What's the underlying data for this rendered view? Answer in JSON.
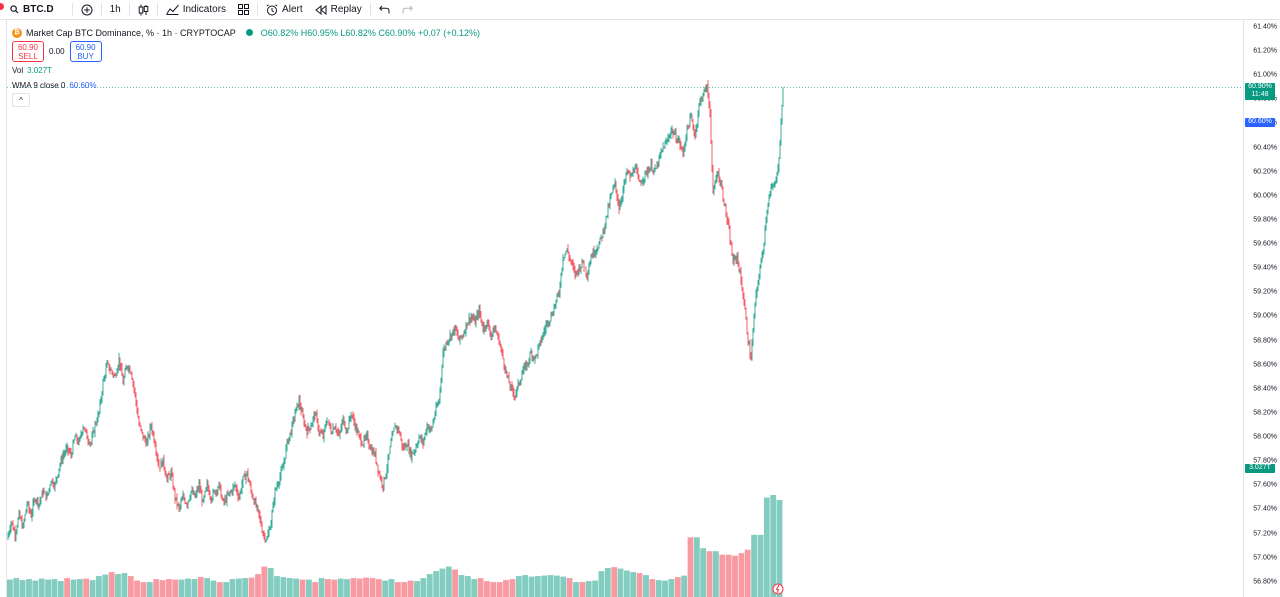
{
  "toolbar": {
    "symbol": "BTC.D",
    "interval": "1h",
    "indicators_label": "Indicators",
    "alert_label": "Alert",
    "replay_label": "Replay"
  },
  "legend": {
    "title": "Market Cap BTC Dominance, % · 1h · CRYPTOCAP",
    "o_label": "O",
    "o": "60.82%",
    "h_label": "H",
    "h": "60.95%",
    "l_label": "L",
    "l": "60.82%",
    "c_label": "C",
    "c": "60.90%",
    "change": "+0.07 (+0.12%)",
    "sell_price": "60.90",
    "sell_label": "SELL",
    "spread": "0.00",
    "buy_price": "60.90",
    "buy_label": "BUY",
    "vol_label": "Vol",
    "vol_value": "3.027T",
    "wma_label": "WMA 9 close 0",
    "wma_value": "60.60%"
  },
  "price_axis": {
    "ticks": [
      "61.40%",
      "61.20%",
      "61.00%",
      "60.80%",
      "60.60%",
      "60.40%",
      "60.20%",
      "60.00%",
      "59.80%",
      "59.60%",
      "59.40%",
      "59.20%",
      "59.00%",
      "58.80%",
      "58.60%",
      "58.40%",
      "58.20%",
      "58.00%",
      "57.80%",
      "57.60%",
      "57.40%",
      "57.20%",
      "57.00%",
      "56.80%"
    ],
    "last_price": "60.90%",
    "countdown": "11:48",
    "wma_tag": "60.60%",
    "vol_tag": "3.027T"
  },
  "colors": {
    "up": "#089981",
    "down": "#f23645",
    "wma": "#2962ff",
    "price_line": "#089981"
  },
  "chart_data": {
    "type": "candlestick",
    "y_range": [
      56.7,
      61.5
    ],
    "price_path": [
      [
        0,
        57.15
      ],
      [
        4,
        57.3
      ],
      [
        8,
        57.2
      ],
      [
        12,
        57.35
      ],
      [
        16,
        57.25
      ],
      [
        20,
        57.45
      ],
      [
        24,
        57.35
      ],
      [
        28,
        57.5
      ],
      [
        32,
        57.45
      ],
      [
        36,
        57.55
      ],
      [
        40,
        57.5
      ],
      [
        44,
        57.65
      ],
      [
        48,
        57.6
      ],
      [
        52,
        57.75
      ],
      [
        56,
        57.85
      ],
      [
        60,
        57.9
      ],
      [
        64,
        57.85
      ],
      [
        68,
        58.0
      ],
      [
        72,
        57.95
      ],
      [
        76,
        58.1
      ],
      [
        80,
        58.0
      ],
      [
        84,
        57.95
      ],
      [
        88,
        58.1
      ],
      [
        92,
        58.2
      ],
      [
        96,
        58.45
      ],
      [
        100,
        58.6
      ],
      [
        104,
        58.55
      ],
      [
        108,
        58.5
      ],
      [
        112,
        58.65
      ],
      [
        116,
        58.45
      ],
      [
        120,
        58.6
      ],
      [
        124,
        58.55
      ],
      [
        128,
        58.35
      ],
      [
        132,
        58.1
      ],
      [
        136,
        58.0
      ],
      [
        140,
        57.95
      ],
      [
        144,
        58.1
      ],
      [
        148,
        57.95
      ],
      [
        152,
        57.75
      ],
      [
        156,
        57.8
      ],
      [
        160,
        57.65
      ],
      [
        164,
        57.7
      ],
      [
        168,
        57.5
      ],
      [
        172,
        57.4
      ],
      [
        176,
        57.5
      ],
      [
        180,
        57.45
      ],
      [
        184,
        57.55
      ],
      [
        188,
        57.5
      ],
      [
        192,
        57.6
      ],
      [
        196,
        57.45
      ],
      [
        200,
        57.6
      ],
      [
        204,
        57.5
      ],
      [
        208,
        57.55
      ],
      [
        212,
        57.6
      ],
      [
        216,
        57.45
      ],
      [
        220,
        57.5
      ],
      [
        224,
        57.55
      ],
      [
        228,
        57.6
      ],
      [
        232,
        57.5
      ],
      [
        236,
        57.65
      ],
      [
        240,
        57.7
      ],
      [
        244,
        57.55
      ],
      [
        248,
        57.45
      ],
      [
        252,
        57.35
      ],
      [
        256,
        57.2
      ],
      [
        260,
        57.15
      ],
      [
        264,
        57.3
      ],
      [
        268,
        57.55
      ],
      [
        272,
        57.65
      ],
      [
        276,
        57.75
      ],
      [
        280,
        57.95
      ],
      [
        284,
        58.05
      ],
      [
        288,
        58.2
      ],
      [
        292,
        58.3
      ],
      [
        296,
        58.15
      ],
      [
        300,
        58.05
      ],
      [
        304,
        58.1
      ],
      [
        308,
        58.2
      ],
      [
        312,
        58.05
      ],
      [
        316,
        58.0
      ],
      [
        320,
        58.15
      ],
      [
        324,
        58.05
      ],
      [
        328,
        58.1
      ],
      [
        332,
        58.0
      ],
      [
        336,
        58.15
      ],
      [
        340,
        58.05
      ],
      [
        344,
        58.2
      ],
      [
        348,
        58.1
      ],
      [
        352,
        58.0
      ],
      [
        356,
        57.95
      ],
      [
        360,
        58.0
      ],
      [
        364,
        57.9
      ],
      [
        368,
        57.85
      ],
      [
        372,
        57.7
      ],
      [
        376,
        57.6
      ],
      [
        380,
        57.75
      ],
      [
        384,
        57.95
      ],
      [
        388,
        58.1
      ],
      [
        392,
        58.05
      ],
      [
        396,
        57.9
      ],
      [
        400,
        57.95
      ],
      [
        404,
        57.85
      ],
      [
        408,
        57.9
      ],
      [
        412,
        58.0
      ],
      [
        416,
        57.95
      ],
      [
        420,
        58.1
      ],
      [
        424,
        58.05
      ],
      [
        428,
        58.2
      ],
      [
        432,
        58.3
      ],
      [
        436,
        58.7
      ],
      [
        440,
        58.8
      ],
      [
        444,
        58.85
      ],
      [
        448,
        58.9
      ],
      [
        452,
        58.8
      ],
      [
        456,
        58.85
      ],
      [
        460,
        58.95
      ],
      [
        464,
        59.0
      ],
      [
        468,
        58.95
      ],
      [
        472,
        59.05
      ],
      [
        476,
        58.9
      ],
      [
        480,
        58.95
      ],
      [
        484,
        58.85
      ],
      [
        488,
        58.9
      ],
      [
        492,
        58.8
      ],
      [
        496,
        58.65
      ],
      [
        500,
        58.5
      ],
      [
        504,
        58.4
      ],
      [
        508,
        58.35
      ],
      [
        512,
        58.45
      ],
      [
        516,
        58.55
      ],
      [
        520,
        58.6
      ],
      [
        524,
        58.7
      ],
      [
        528,
        58.65
      ],
      [
        532,
        58.75
      ],
      [
        536,
        58.85
      ],
      [
        540,
        58.95
      ],
      [
        544,
        59.0
      ],
      [
        548,
        59.1
      ],
      [
        552,
        59.2
      ],
      [
        556,
        59.5
      ],
      [
        560,
        59.55
      ],
      [
        564,
        59.45
      ],
      [
        568,
        59.35
      ],
      [
        572,
        59.4
      ],
      [
        576,
        59.45
      ],
      [
        580,
        59.35
      ],
      [
        584,
        59.5
      ],
      [
        588,
        59.55
      ],
      [
        592,
        59.6
      ],
      [
        596,
        59.7
      ],
      [
        600,
        59.85
      ],
      [
        604,
        60.0
      ],
      [
        608,
        60.1
      ],
      [
        612,
        59.9
      ],
      [
        616,
        60.05
      ],
      [
        620,
        60.2
      ],
      [
        624,
        60.15
      ],
      [
        628,
        60.25
      ],
      [
        632,
        60.1
      ],
      [
        636,
        60.15
      ],
      [
        640,
        60.2
      ],
      [
        644,
        60.25
      ],
      [
        648,
        60.2
      ],
      [
        652,
        60.3
      ],
      [
        656,
        60.4
      ],
      [
        660,
        60.45
      ],
      [
        664,
        60.55
      ],
      [
        668,
        60.5
      ],
      [
        672,
        60.45
      ],
      [
        676,
        60.35
      ],
      [
        680,
        60.55
      ],
      [
        684,
        60.65
      ],
      [
        688,
        60.5
      ],
      [
        692,
        60.75
      ],
      [
        696,
        60.85
      ],
      [
        700,
        60.9
      ],
      [
        703,
        60.7
      ],
      [
        706,
        60.0
      ],
      [
        710,
        60.2
      ],
      [
        714,
        60.1
      ],
      [
        718,
        59.9
      ],
      [
        722,
        59.7
      ],
      [
        726,
        59.45
      ],
      [
        730,
        59.5
      ],
      [
        734,
        59.3
      ],
      [
        738,
        59.05
      ],
      [
        741,
        58.8
      ],
      [
        744,
        58.65
      ],
      [
        748,
        59.1
      ],
      [
        752,
        59.35
      ],
      [
        756,
        59.55
      ],
      [
        760,
        59.9
      ],
      [
        764,
        60.05
      ],
      [
        768,
        60.1
      ],
      [
        772,
        60.3
      ],
      [
        776,
        60.9
      ]
    ],
    "volume_levels": [
      0.35,
      0.38,
      0.34,
      0.36,
      0.33,
      0.37,
      0.35,
      0.36,
      0.32,
      0.38,
      0.35,
      0.36,
      0.37,
      0.34,
      0.42,
      0.45,
      0.5,
      0.46,
      0.48,
      0.42,
      0.33,
      0.3,
      0.3,
      0.36,
      0.34,
      0.36,
      0.35,
      0.35,
      0.37,
      0.36,
      0.4,
      0.38,
      0.33,
      0.3,
      0.3,
      0.36,
      0.37,
      0.38,
      0.39,
      0.46,
      0.61,
      0.58,
      0.42,
      0.4,
      0.38,
      0.37,
      0.35,
      0.35,
      0.3,
      0.38,
      0.36,
      0.35,
      0.37,
      0.36,
      0.38,
      0.37,
      0.39,
      0.38,
      0.36,
      0.33,
      0.36,
      0.3,
      0.3,
      0.33,
      0.32,
      0.38,
      0.46,
      0.52,
      0.57,
      0.61,
      0.55,
      0.44,
      0.42,
      0.36,
      0.38,
      0.32,
      0.3,
      0.3,
      0.34,
      0.36,
      0.42,
      0.44,
      0.41,
      0.42,
      0.43,
      0.44,
      0.43,
      0.41,
      0.38,
      0.3,
      0.3,
      0.32,
      0.33,
      0.52,
      0.58,
      0.6,
      0.57,
      0.53,
      0.5,
      0.48,
      0.44,
      0.36,
      0.34,
      0.33,
      0.36,
      0.4,
      0.43,
      1.2,
      1.2,
      0.98,
      0.92,
      0.92,
      0.85,
      0.85,
      0.83,
      0.88,
      0.95,
      1.25,
      1.25,
      2.0,
      2.05,
      1.95
    ]
  }
}
